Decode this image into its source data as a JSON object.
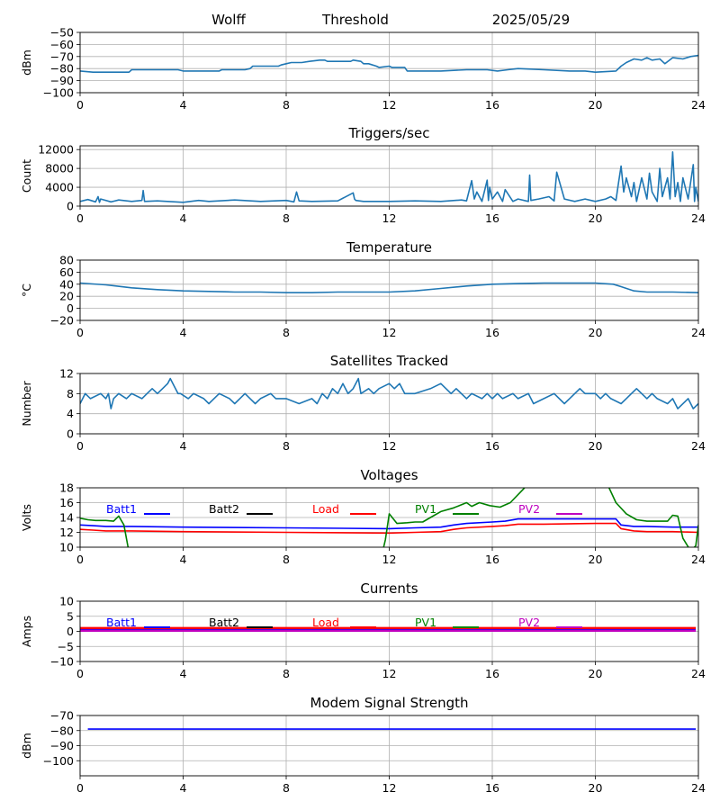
{
  "header": {
    "station": "Wolff",
    "measure": "Threshold",
    "date": "2025/05/29"
  },
  "colors": {
    "trace": "#1f77b4",
    "grid": "#b0b0b0",
    "batt1": "#0000ff",
    "batt2": "#000000",
    "load": "#ff0000",
    "pv1": "#008000",
    "pv2": "#bf00bf"
  },
  "chart_data": [
    {
      "type": "line",
      "title": "",
      "ylabel": "dBm",
      "xlim": [
        0,
        24
      ],
      "ylim": [
        -100,
        -50
      ],
      "xticks": [
        0,
        4,
        8,
        12,
        16,
        20,
        24
      ],
      "yticks": [
        -100,
        -90,
        -80,
        -70,
        -60,
        -50
      ],
      "series": [
        {
          "color": "#1f77b4",
          "x": [
            0,
            0.5,
            1.9,
            2,
            3.8,
            4,
            5.4,
            5.5,
            6.4,
            6.6,
            6.7,
            7.7,
            7.8,
            8,
            8.2,
            8.6,
            8.9,
            9.3,
            9.5,
            9.6,
            10.5,
            10.6,
            10.9,
            11,
            11.2,
            11.5,
            11.6,
            12,
            12.1,
            12.6,
            12.7,
            13,
            14,
            15,
            15.8,
            16.2,
            16.6,
            17,
            18,
            19,
            19.6,
            20,
            20.8,
            21,
            21.2,
            21.5,
            21.8,
            22.0,
            22.2,
            22.5,
            22.7,
            23.0,
            23.4,
            23.7,
            24
          ],
          "y": [
            -82,
            -83,
            -83,
            -81,
            -81,
            -82,
            -82,
            -81,
            -81,
            -80,
            -78,
            -78,
            -77,
            -76,
            -75,
            -75,
            -74,
            -73,
            -73,
            -74,
            -74,
            -73,
            -74,
            -76,
            -76,
            -78,
            -79,
            -78,
            -79,
            -79,
            -82,
            -82,
            -82,
            -81,
            -81,
            -82,
            -81,
            -80,
            -81,
            -82,
            -82,
            -83,
            -82,
            -78,
            -75,
            -72,
            -73,
            -71,
            -73,
            -72,
            -76,
            -71,
            -72,
            -70,
            -69
          ]
        }
      ]
    },
    {
      "type": "line",
      "title": "Triggers/sec",
      "ylabel": "Count",
      "xlim": [
        0,
        24
      ],
      "ylim": [
        0,
        12800
      ],
      "xticks": [
        0,
        4,
        8,
        12,
        16,
        20,
        24
      ],
      "yticks": [
        0,
        4000,
        8000,
        12000
      ],
      "series": [
        {
          "color": "#1f77b4",
          "x": [
            0,
            0.3,
            0.6,
            0.7,
            0.75,
            0.8,
            1.2,
            1.5,
            2,
            2.4,
            2.45,
            2.5,
            3,
            4,
            4.6,
            5,
            6,
            7,
            8,
            8.3,
            8.4,
            8.5,
            9,
            10,
            10.6,
            10.65,
            10.7,
            11,
            12,
            13,
            14,
            14.8,
            15,
            15.2,
            15.3,
            15.4,
            15.6,
            15.8,
            15.85,
            15.9,
            16,
            16.2,
            16.4,
            16.5,
            16.8,
            17,
            17.4,
            17.45,
            17.5,
            17.8,
            18.2,
            18.4,
            18.5,
            18.8,
            19.2,
            19.6,
            20,
            20.4,
            20.6,
            20.8,
            20.9,
            21,
            21.1,
            21.2,
            21.4,
            21.5,
            21.6,
            21.8,
            22,
            22.1,
            22.2,
            22.4,
            22.5,
            22.6,
            22.8,
            22.9,
            23,
            23.1,
            23.2,
            23.3,
            23.4,
            23.6,
            23.8,
            23.85,
            23.9,
            24
          ],
          "y": [
            1000,
            1400,
            900,
            2000,
            800,
            1500,
            900,
            1300,
            1000,
            1200,
            3300,
            1000,
            1100,
            800,
            1200,
            1000,
            1300,
            1000,
            1200,
            900,
            3000,
            1100,
            1000,
            1100,
            2800,
            1500,
            1200,
            1000,
            1000,
            1100,
            1000,
            1300,
            1100,
            5400,
            1500,
            3000,
            1000,
            5500,
            1200,
            4000,
            1500,
            3000,
            1000,
            3500,
            1000,
            1500,
            1000,
            6600,
            1200,
            1500,
            2000,
            1100,
            7200,
            1500,
            1000,
            1500,
            1000,
            1500,
            2000,
            1200,
            5000,
            8500,
            3000,
            6000,
            2000,
            5000,
            1000,
            6000,
            1500,
            7000,
            3000,
            1000,
            8000,
            2000,
            6000,
            1500,
            11500,
            2000,
            5000,
            1000,
            6000,
            1500,
            8800,
            1000,
            4000,
            1000
          ]
        }
      ]
    },
    {
      "type": "line",
      "title": "Temperature",
      "ylabel": "°C",
      "xlim": [
        0,
        24
      ],
      "ylim": [
        -20,
        80
      ],
      "xticks": [
        0,
        4,
        8,
        12,
        16,
        20,
        24
      ],
      "yticks": [
        -20,
        0,
        20,
        40,
        60,
        80
      ],
      "series": [
        {
          "color": "#1f77b4",
          "x": [
            0,
            1,
            2,
            3,
            4,
            5,
            6,
            7,
            8,
            9,
            10,
            11,
            12,
            13,
            14,
            15,
            16,
            17,
            18,
            19,
            20,
            20.7,
            21,
            21.5,
            22,
            23,
            24
          ],
          "y": [
            42,
            39,
            34,
            31,
            29,
            28,
            27,
            27,
            26,
            26,
            27,
            27,
            27,
            29,
            33,
            37,
            40,
            41,
            42,
            42,
            42,
            40,
            36,
            29,
            27,
            27,
            26
          ]
        }
      ]
    },
    {
      "type": "line",
      "title": "Satellites Tracked",
      "ylabel": "Number",
      "xlim": [
        0,
        24
      ],
      "ylim": [
        0,
        12
      ],
      "xticks": [
        0,
        4,
        8,
        12,
        16,
        20,
        24
      ],
      "yticks": [
        0,
        4,
        8,
        12
      ],
      "series": [
        {
          "color": "#1f77b4",
          "x": [
            0,
            0.2,
            0.4,
            0.8,
            1,
            1.1,
            1.2,
            1.3,
            1.5,
            1.8,
            2,
            2.4,
            2.6,
            2.8,
            3,
            3.2,
            3.4,
            3.5,
            3.8,
            3.9,
            4.2,
            4.4,
            4.8,
            5,
            5.2,
            5.4,
            5.8,
            6,
            6.2,
            6.4,
            6.6,
            6.8,
            7,
            7.4,
            7.6,
            7.8,
            8,
            8.5,
            9,
            9.2,
            9.4,
            9.6,
            9.8,
            10,
            10.2,
            10.4,
            10.6,
            10.8,
            10.9,
            11.2,
            11.4,
            11.6,
            12,
            12.2,
            12.4,
            12.6,
            13,
            13.6,
            14,
            14.4,
            14.6,
            15,
            15.2,
            15.6,
            15.8,
            16,
            16.2,
            16.4,
            16.8,
            17,
            17.4,
            17.6,
            18,
            18.4,
            18.8,
            19,
            19.4,
            19.6,
            20,
            20.2,
            20.4,
            20.6,
            21,
            21.2,
            21.4,
            21.6,
            22,
            22.2,
            22.4,
            22.8,
            23,
            23.2,
            23.6,
            23.8,
            24
          ],
          "y": [
            6,
            8,
            7,
            8,
            7,
            8,
            5,
            7,
            8,
            7,
            8,
            7,
            8,
            9,
            8,
            9,
            10,
            11,
            8,
            8,
            7,
            8,
            7,
            6,
            7,
            8,
            7,
            6,
            7,
            8,
            7,
            6,
            7,
            8,
            7,
            7,
            7,
            6,
            7,
            6,
            8,
            7,
            9,
            8,
            10,
            8,
            9,
            11,
            8,
            9,
            8,
            9,
            10,
            9,
            10,
            8,
            8,
            9,
            10,
            8,
            9,
            7,
            8,
            7,
            8,
            7,
            8,
            7,
            8,
            7,
            8,
            6,
            7,
            8,
            6,
            7,
            9,
            8,
            8,
            7,
            8,
            7,
            6,
            7,
            8,
            9,
            7,
            8,
            7,
            6,
            7,
            5,
            7,
            5,
            6
          ]
        }
      ]
    },
    {
      "type": "line",
      "title": "Voltages",
      "ylabel": "Volts",
      "xlim": [
        0,
        24
      ],
      "ylim": [
        10,
        18
      ],
      "xticks": [
        0,
        4,
        8,
        12,
        16,
        20,
        24
      ],
      "yticks": [
        10,
        12,
        14,
        16,
        18
      ],
      "legend": [
        "Batt1",
        "Batt2",
        "Load",
        "PV1",
        "PV2"
      ],
      "series": [
        {
          "name": "Batt1",
          "color": "#0000ff",
          "x": [
            0,
            0.5,
            1,
            2,
            4,
            8,
            12,
            13,
            14,
            14.5,
            15,
            16,
            16.5,
            17,
            18,
            20,
            20.8,
            21,
            21.5,
            22,
            23,
            24
          ],
          "y": [
            13,
            12.9,
            12.8,
            12.8,
            12.7,
            12.6,
            12.5,
            12.6,
            12.7,
            13,
            13.2,
            13.4,
            13.5,
            13.8,
            13.8,
            13.8,
            13.8,
            13.0,
            12.8,
            12.8,
            12.7,
            12.7
          ]
        },
        {
          "name": "Load",
          "color": "#ff0000",
          "x": [
            0,
            0.5,
            1,
            2,
            4,
            8,
            12,
            13,
            14,
            14.5,
            15,
            16,
            16.5,
            17,
            18,
            20,
            20.8,
            21,
            21.5,
            22,
            23,
            24
          ],
          "y": [
            12.4,
            12.3,
            12.2,
            12.2,
            12.1,
            12.0,
            11.9,
            12.0,
            12.1,
            12.4,
            12.6,
            12.8,
            12.9,
            13.1,
            13.1,
            13.2,
            13.2,
            12.5,
            12.2,
            12.1,
            12.1,
            12.0
          ]
        },
        {
          "name": "PV1",
          "color": "#008000",
          "x": [
            0,
            0.3,
            0.6,
            1,
            1.3,
            1.5,
            1.7,
            1.85,
            1.9
          ],
          "y": [
            13.9,
            13.7,
            13.6,
            13.6,
            13.5,
            14.2,
            13.0,
            10.2,
            9.5
          ]
        },
        {
          "name": "PV1",
          "color": "#008000",
          "x": [
            11.75,
            11.85,
            12,
            12.3,
            12.7,
            13,
            13.3,
            13.6,
            14,
            14.5,
            15,
            15.2,
            15.5,
            15.9,
            16.3,
            16.7,
            17.2,
            17.5
          ],
          "y": [
            9.5,
            11,
            14.5,
            13.2,
            13.3,
            13.4,
            13.4,
            14,
            14.8,
            15.3,
            16.0,
            15.5,
            16,
            15.6,
            15.4,
            16.0,
            17.8,
            19
          ]
        },
        {
          "name": "PV1",
          "color": "#008000",
          "x": [
            20.4,
            20.8,
            21.2,
            21.6,
            22,
            22.4,
            22.8,
            23,
            23.2,
            23.4,
            23.7,
            23.9,
            24
          ],
          "y": [
            19,
            16.0,
            14.5,
            13.7,
            13.5,
            13.5,
            13.5,
            14.3,
            14.2,
            11.2,
            9.5,
            10.2,
            13.0
          ]
        }
      ]
    },
    {
      "type": "line",
      "title": "Currents",
      "ylabel": "Amps",
      "xlim": [
        0,
        24
      ],
      "ylim": [
        -10,
        10
      ],
      "xticks": [
        0,
        4,
        8,
        12,
        16,
        20,
        24
      ],
      "yticks": [
        -10,
        -5,
        0,
        5,
        10
      ],
      "legend": [
        "Batt1",
        "Batt2",
        "Load",
        "PV1",
        "PV2"
      ],
      "series": [
        {
          "name": "Batt1",
          "color": "#0000ff",
          "x": [
            0,
            23.9
          ],
          "y": [
            0.5,
            0.5
          ]
        },
        {
          "name": "Load",
          "color": "#ff0000",
          "x": [
            0,
            23.9
          ],
          "y": [
            1.1,
            1.1
          ]
        },
        {
          "name": "PV2",
          "color": "#bf00bf",
          "x": [
            0,
            23.9
          ],
          "y": [
            0.2,
            0.2
          ]
        }
      ]
    },
    {
      "type": "line",
      "title": "Modem Signal Strength",
      "ylabel": "dBm",
      "xlim": [
        0,
        24
      ],
      "ylim": [
        -110,
        -70
      ],
      "xticks": [
        0,
        4,
        8,
        12,
        16,
        20,
        24
      ],
      "yticks": [
        -100,
        -90,
        -80,
        -70
      ],
      "series": [
        {
          "color": "#0000ff",
          "x": [
            0.3,
            23.9
          ],
          "y": [
            -79,
            -79
          ]
        }
      ]
    }
  ]
}
